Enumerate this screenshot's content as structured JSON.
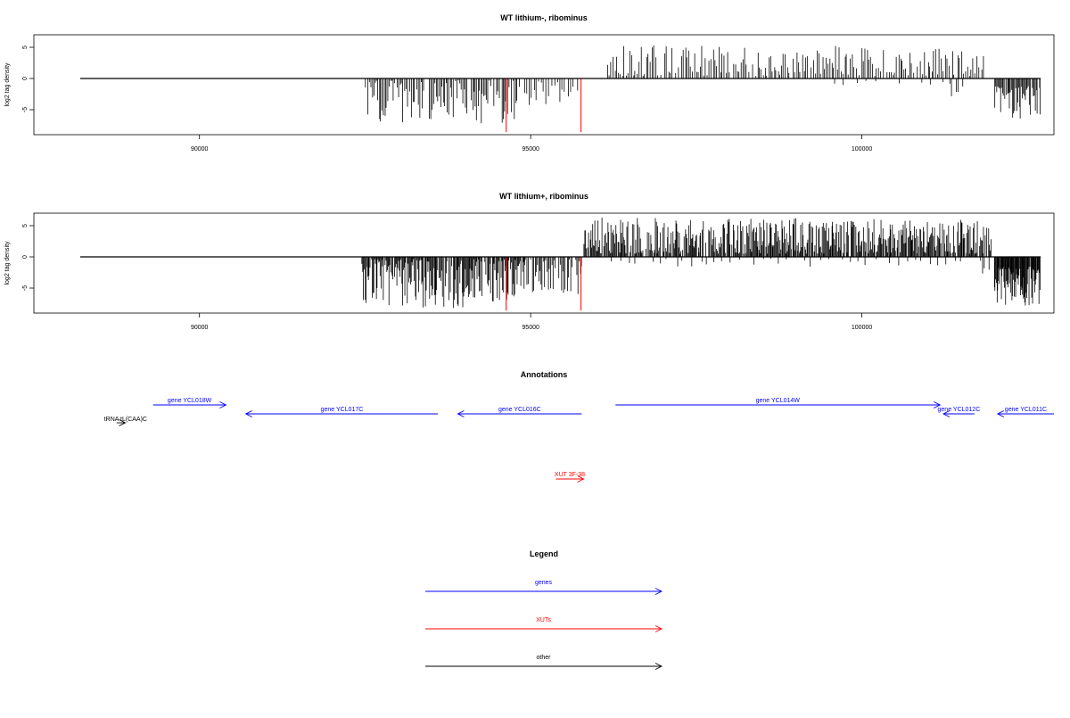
{
  "chart_data": [
    {
      "type": "bar",
      "title": "WT lithium-, ribominus",
      "ylabel": "log2 tag density",
      "xlim": [
        87500,
        102900
      ],
      "ylim": [
        -9,
        7
      ],
      "xticks": [
        90000,
        95000,
        100000
      ],
      "yticks": [
        -5,
        0,
        5
      ],
      "baseline": [
        88200,
        102700
      ],
      "highlights": [
        {
          "x": 94630,
          "y": -8.6,
          "color": "#ff0000"
        },
        {
          "x": 95760,
          "y": -8.6,
          "color": "#ff0000"
        }
      ],
      "segments": [
        {
          "from": 92500,
          "to": 94800,
          "min": -7.2,
          "max": -0.3,
          "step": 21,
          "seed": 11
        },
        {
          "from": 94830,
          "to": 95720,
          "min": -4.5,
          "max": -0.3,
          "step": 35,
          "seed": 12
        },
        {
          "from": 96150,
          "to": 101850,
          "min": 0.4,
          "max": 5.3,
          "step": 28,
          "seed": 13
        },
        {
          "from": 99550,
          "to": 101500,
          "min": -1.5,
          "max": -0.3,
          "step": 160,
          "seed": 14
        },
        {
          "from": 101350,
          "to": 101450,
          "min": -4.0,
          "max": -1.5,
          "step": 50,
          "seed": 15
        },
        {
          "from": 102000,
          "to": 102700,
          "min": -6.6,
          "max": -1.2,
          "step": 15,
          "seed": 16
        }
      ]
    },
    {
      "type": "bar",
      "title": "WT lithium+, ribominus",
      "ylabel": "log2 tag density",
      "xlim": [
        87500,
        102900
      ],
      "ylim": [
        -9,
        7
      ],
      "xticks": [
        90000,
        95000,
        100000
      ],
      "yticks": [
        -5,
        0,
        5
      ],
      "baseline": [
        88200,
        102700
      ],
      "highlights": [
        {
          "x": 94630,
          "y": -8.6,
          "color": "#ff0000"
        },
        {
          "x": 95760,
          "y": -8.6,
          "color": "#ff0000"
        }
      ],
      "segments": [
        {
          "from": 92450,
          "to": 94900,
          "min": -8.2,
          "max": -0.4,
          "step": 12,
          "seed": 21
        },
        {
          "from": 94900,
          "to": 95780,
          "min": -6.0,
          "max": -0.4,
          "step": 18,
          "seed": 22
        },
        {
          "from": 95800,
          "to": 101950,
          "min": 0.5,
          "max": 6.3,
          "step": 12,
          "seed": 23
        },
        {
          "from": 96200,
          "to": 101800,
          "min": -1.6,
          "max": -0.3,
          "step": 120,
          "seed": 24
        },
        {
          "from": 101800,
          "to": 101950,
          "min": -3.8,
          "max": -1.8,
          "step": 40,
          "seed": 25
        },
        {
          "from": 102000,
          "to": 102700,
          "min": -7.8,
          "max": -1.5,
          "step": 8,
          "seed": 26
        }
      ]
    }
  ],
  "annotations": {
    "title": "Annotations",
    "xlim": [
      87500,
      102900
    ],
    "features": [
      {
        "label": "gene YCL018W",
        "start": 89300,
        "end": 90400,
        "strand": "+",
        "row": 0,
        "color": "#0000ff"
      },
      {
        "label": "gene YCL017C",
        "start": 90700,
        "end": 93600,
        "strand": "-",
        "row": 1,
        "color": "#0000ff"
      },
      {
        "label": "gene YCL016C",
        "start": 93900,
        "end": 95770,
        "strand": "-",
        "row": 1,
        "color": "#0000ff"
      },
      {
        "label": "gene YCL014W",
        "start": 96280,
        "end": 101180,
        "strand": "+",
        "row": 0,
        "color": "#0000ff"
      },
      {
        "label": "gene YCL012C",
        "start": 101230,
        "end": 101700,
        "strand": "-",
        "row": 1,
        "color": "#0000ff"
      },
      {
        "label": "gene YCL011C",
        "start": 102050,
        "end": 102900,
        "strand": "-",
        "row": 1,
        "color": "#0000ff"
      },
      {
        "label": "tRNA tL(CAA)C",
        "start": 88750,
        "end": 88880,
        "strand": "+",
        "row": 2,
        "color": "#000000"
      },
      {
        "label": "XUT 3F-38",
        "start": 95380,
        "end": 95800,
        "strand": "+",
        "row": 3,
        "color": "#ff0000"
      }
    ]
  },
  "legend": {
    "title": "Legend",
    "items": [
      {
        "label": "genes",
        "color": "#0000ff"
      },
      {
        "label": "XUTs",
        "color": "#ff0000"
      },
      {
        "label": "other",
        "color": "#000000"
      }
    ]
  }
}
